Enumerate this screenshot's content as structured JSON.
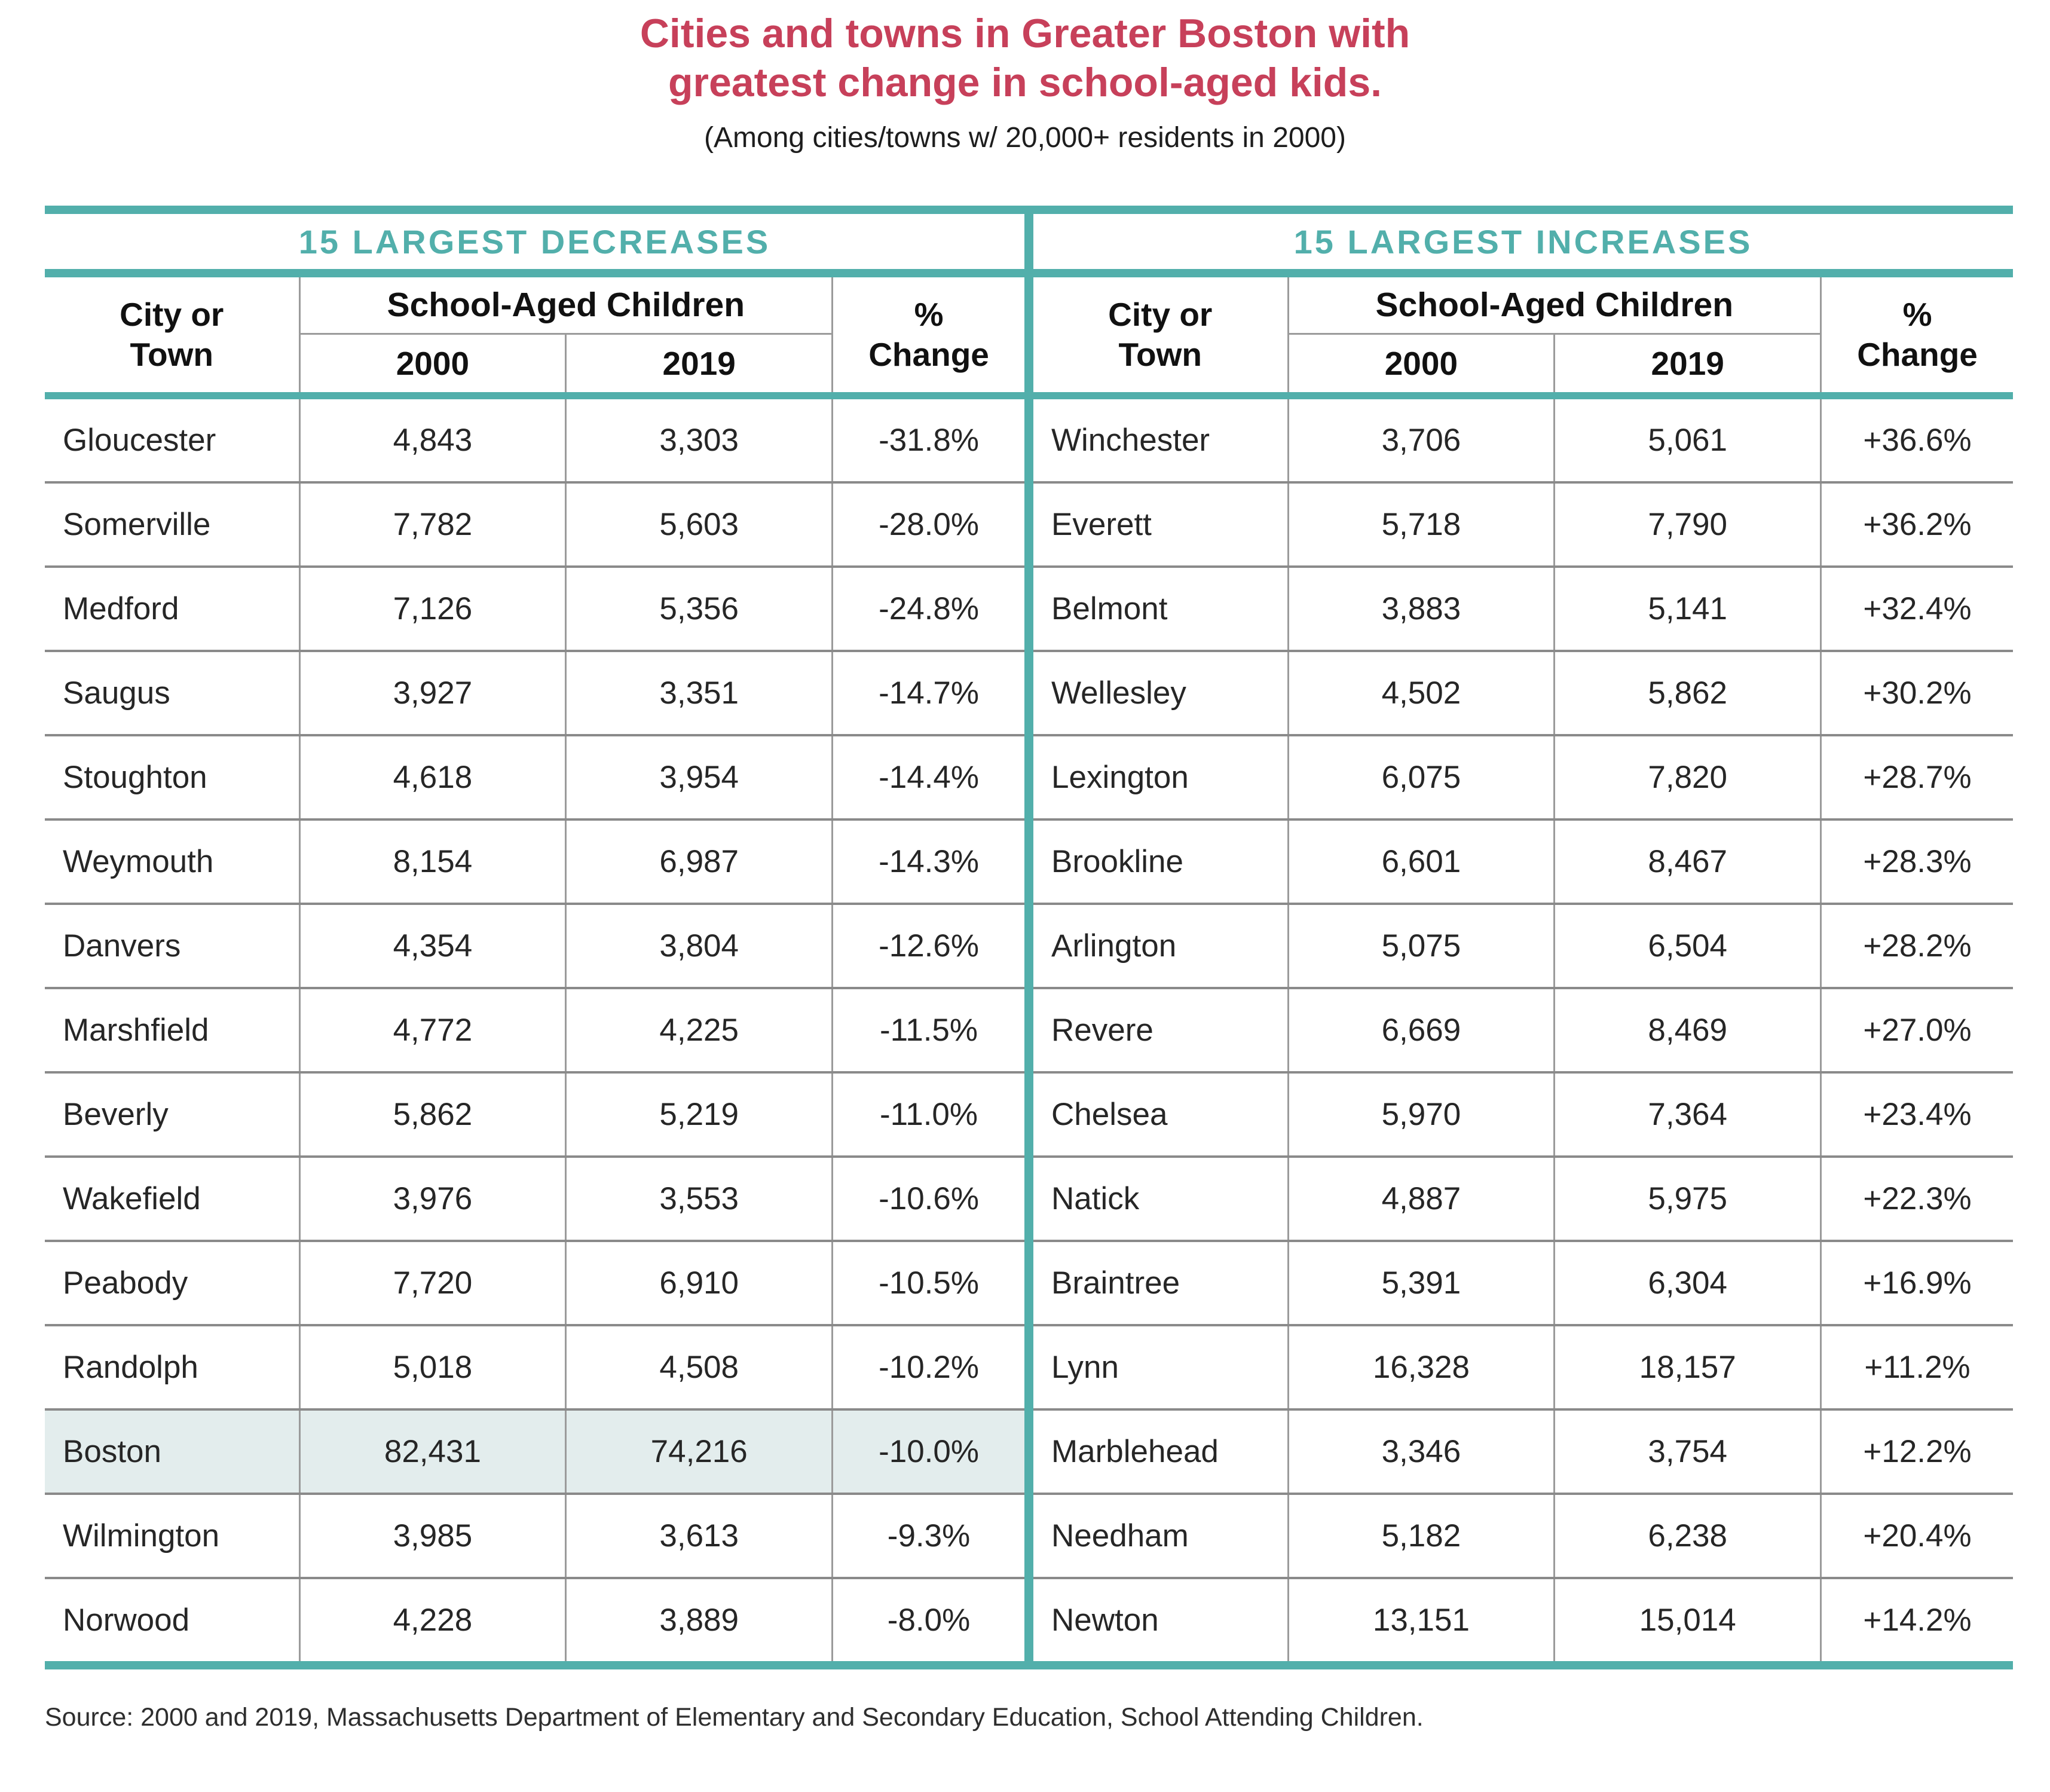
{
  "title": {
    "line1": "Cities and towns in Greater Boston with",
    "line2": "greatest change in school-aged kids."
  },
  "subtitle": "(Among cities/towns w/ 20,000+ residents in 2000)",
  "source": "Source: 2000 and 2019, Massachusetts Department of Elementary and Secondary Education, School Attending Children.",
  "colors": {
    "accent_teal": "#52AFAB",
    "title_red": "#C7405A",
    "highlight_row_bg": "#E3EDED",
    "grid_line_gray": "#9B9B9B",
    "row_separator_gray": "#8A8A8A"
  },
  "headers": {
    "city_line1": "City or",
    "city_line2": "Town",
    "group": "School-Aged Children",
    "col_2000": "2000",
    "col_2019": "2019",
    "pct_line1": "%",
    "pct_line2": "Change"
  },
  "decreases": {
    "section_title": "15 LARGEST DECREASES",
    "rows": [
      {
        "city": "Gloucester",
        "y2000": "4,843",
        "y2019": "3,303",
        "change": "-31.8%"
      },
      {
        "city": "Somerville",
        "y2000": "7,782",
        "y2019": "5,603",
        "change": "-28.0%"
      },
      {
        "city": "Medford",
        "y2000": "7,126",
        "y2019": "5,356",
        "change": "-24.8%"
      },
      {
        "city": "Saugus",
        "y2000": "3,927",
        "y2019": "3,351",
        "change": "-14.7%"
      },
      {
        "city": "Stoughton",
        "y2000": "4,618",
        "y2019": "3,954",
        "change": "-14.4%"
      },
      {
        "city": "Weymouth",
        "y2000": "8,154",
        "y2019": "6,987",
        "change": "-14.3%"
      },
      {
        "city": "Danvers",
        "y2000": "4,354",
        "y2019": "3,804",
        "change": "-12.6%"
      },
      {
        "city": "Marshfield",
        "y2000": "4,772",
        "y2019": "4,225",
        "change": "-11.5%"
      },
      {
        "city": "Beverly",
        "y2000": "5,862",
        "y2019": "5,219",
        "change": "-11.0%"
      },
      {
        "city": "Wakefield",
        "y2000": "3,976",
        "y2019": "3,553",
        "change": "-10.6%"
      },
      {
        "city": "Peabody",
        "y2000": "7,720",
        "y2019": "6,910",
        "change": "-10.5%"
      },
      {
        "city": "Randolph",
        "y2000": "5,018",
        "y2019": "4,508",
        "change": "-10.2%"
      },
      {
        "city": "Boston",
        "y2000": "82,431",
        "y2019": "74,216",
        "change": "-10.0%"
      },
      {
        "city": "Wilmington",
        "y2000": "3,985",
        "y2019": "3,613",
        "change": "-9.3%"
      },
      {
        "city": "Norwood",
        "y2000": "4,228",
        "y2019": "3,889",
        "change": "-8.0%"
      }
    ]
  },
  "increases": {
    "section_title": "15 LARGEST INCREASES",
    "rows": [
      {
        "city": "Winchester",
        "y2000": "3,706",
        "y2019": "5,061",
        "change": "+36.6%"
      },
      {
        "city": "Everett",
        "y2000": "5,718",
        "y2019": "7,790",
        "change": "+36.2%"
      },
      {
        "city": "Belmont",
        "y2000": "3,883",
        "y2019": "5,141",
        "change": "+32.4%"
      },
      {
        "city": "Wellesley",
        "y2000": "4,502",
        "y2019": "5,862",
        "change": "+30.2%"
      },
      {
        "city": "Lexington",
        "y2000": "6,075",
        "y2019": "7,820",
        "change": "+28.7%"
      },
      {
        "city": "Brookline",
        "y2000": "6,601",
        "y2019": "8,467",
        "change": "+28.3%"
      },
      {
        "city": "Arlington",
        "y2000": "5,075",
        "y2019": "6,504",
        "change": "+28.2%"
      },
      {
        "city": "Revere",
        "y2000": "6,669",
        "y2019": "8,469",
        "change": "+27.0%"
      },
      {
        "city": "Chelsea",
        "y2000": "5,970",
        "y2019": "7,364",
        "change": "+23.4%"
      },
      {
        "city": "Natick",
        "y2000": "4,887",
        "y2019": "5,975",
        "change": "+22.3%"
      },
      {
        "city": "Braintree",
        "y2000": "5,391",
        "y2019": "6,304",
        "change": "+16.9%"
      },
      {
        "city": "Lynn",
        "y2000": "16,328",
        "y2019": "18,157",
        "change": "+11.2%"
      },
      {
        "city": "Marblehead",
        "y2000": "3,346",
        "y2019": "3,754",
        "change": "+12.2%"
      },
      {
        "city": "Needham",
        "y2000": "5,182",
        "y2019": "6,238",
        "change": "+20.4%"
      },
      {
        "city": "Newton",
        "y2000": "13,151",
        "y2019": "15,014",
        "change": "+14.2%"
      }
    ]
  },
  "chart_data": {
    "type": "table",
    "title": "Cities and towns in Greater Boston with greatest change in school-aged kids.",
    "subtitle": "(Among cities/towns w/ 20,000+ residents in 2000)",
    "panels": [
      {
        "label": "15 LARGEST DECREASES",
        "columns": [
          "City or Town",
          "School-Aged Children 2000",
          "School-Aged Children 2019",
          "% Change"
        ],
        "rows": [
          [
            "Gloucester",
            4843,
            3303,
            -31.8
          ],
          [
            "Somerville",
            7782,
            5603,
            -28.0
          ],
          [
            "Medford",
            7126,
            5356,
            -24.8
          ],
          [
            "Saugus",
            3927,
            3351,
            -14.7
          ],
          [
            "Stoughton",
            4618,
            3954,
            -14.4
          ],
          [
            "Weymouth",
            8154,
            6987,
            -14.3
          ],
          [
            "Danvers",
            4354,
            3804,
            -12.6
          ],
          [
            "Marshfield",
            4772,
            4225,
            -11.5
          ],
          [
            "Beverly",
            5862,
            5219,
            -11.0
          ],
          [
            "Wakefield",
            3976,
            3553,
            -10.6
          ],
          [
            "Peabody",
            7720,
            6910,
            -10.5
          ],
          [
            "Randolph",
            5018,
            4508,
            -10.2
          ],
          [
            "Boston",
            82431,
            74216,
            -10.0
          ],
          [
            "Wilmington",
            3985,
            3613,
            -9.3
          ],
          [
            "Norwood",
            4228,
            3889,
            -8.0
          ]
        ]
      },
      {
        "label": "15 LARGEST INCREASES",
        "columns": [
          "City or Town",
          "School-Aged Children 2000",
          "School-Aged Children 2019",
          "% Change"
        ],
        "rows": [
          [
            "Winchester",
            3706,
            5061,
            36.6
          ],
          [
            "Everett",
            5718,
            7790,
            36.2
          ],
          [
            "Belmont",
            3883,
            5141,
            32.4
          ],
          [
            "Wellesley",
            4502,
            5862,
            30.2
          ],
          [
            "Lexington",
            6075,
            7820,
            28.7
          ],
          [
            "Brookline",
            6601,
            8467,
            28.3
          ],
          [
            "Arlington",
            5075,
            6504,
            28.2
          ],
          [
            "Revere",
            6669,
            8469,
            27.0
          ],
          [
            "Chelsea",
            5970,
            7364,
            23.4
          ],
          [
            "Natick",
            4887,
            5975,
            22.3
          ],
          [
            "Braintree",
            5391,
            6304,
            16.9
          ],
          [
            "Lynn",
            16328,
            18157,
            11.2
          ],
          [
            "Marblehead",
            3346,
            3754,
            12.2
          ],
          [
            "Needham",
            5182,
            6238,
            20.4
          ],
          [
            "Newton",
            13151,
            15014,
            14.2
          ]
        ]
      }
    ],
    "highlighted_row": "Boston",
    "source": "Source: 2000 and 2019, Massachusetts Department of Elementary and Secondary Education, School Attending Children."
  }
}
